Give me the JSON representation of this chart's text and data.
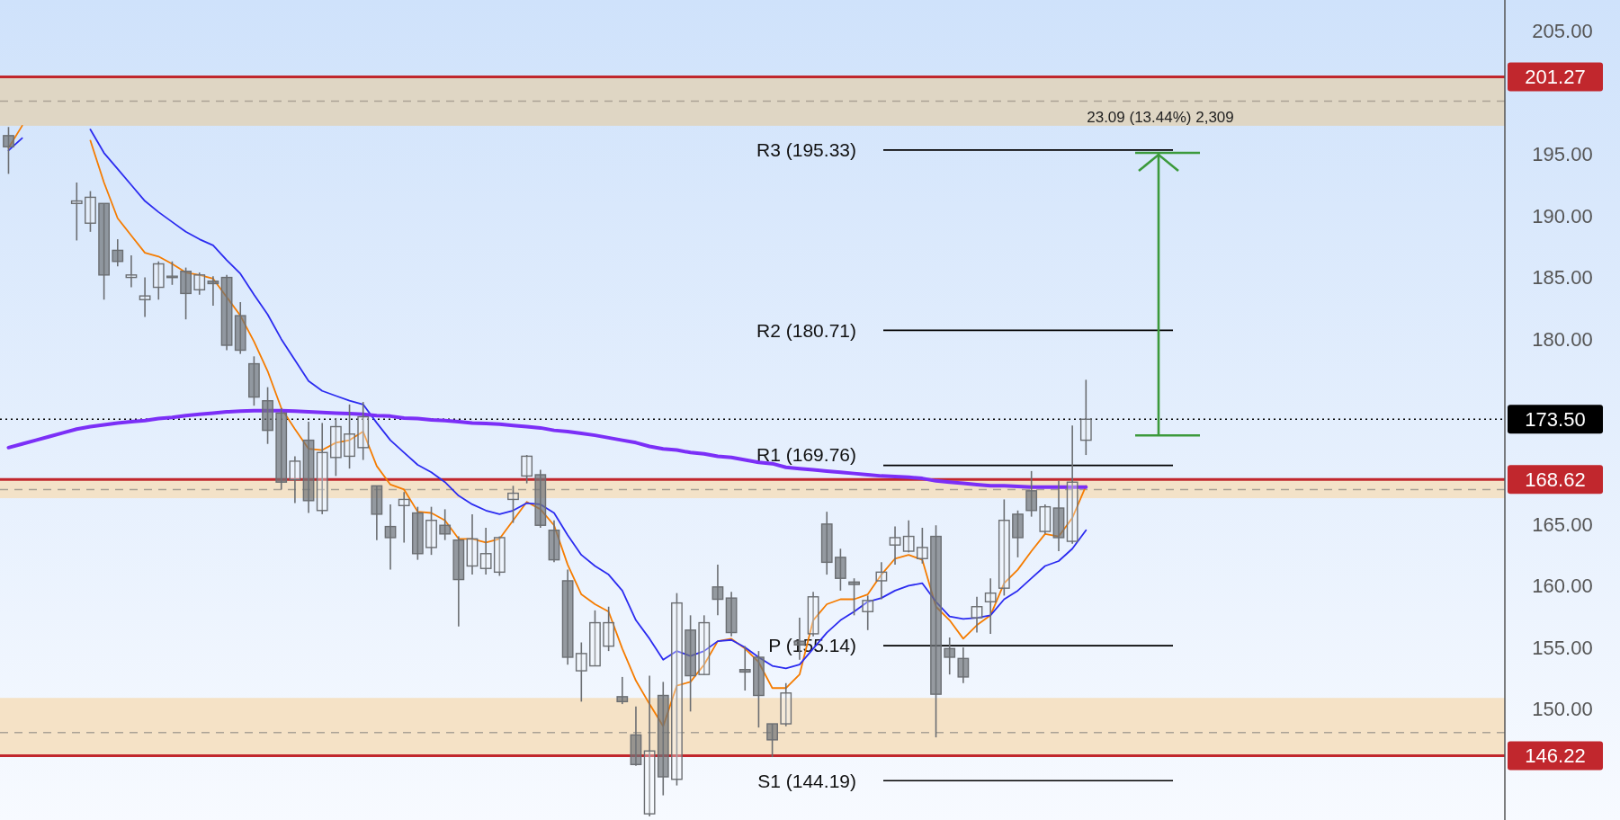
{
  "chart_data": {
    "type": "candlestick",
    "categories": [
      null,
      null,
      null,
      null,
      null,
      null,
      null,
      null,
      null,
      null,
      null,
      null,
      null,
      null,
      null,
      null,
      null,
      null,
      null,
      null,
      null,
      null,
      null,
      null,
      null,
      null,
      null,
      null,
      null,
      null,
      null,
      null,
      null,
      null,
      null,
      null,
      null,
      null,
      null,
      null,
      null,
      null,
      null,
      null,
      null,
      null,
      null,
      null,
      null,
      null,
      null,
      null,
      null,
      null,
      null,
      null,
      null,
      null,
      null,
      null,
      null,
      null,
      null,
      null,
      null,
      null,
      null,
      null,
      null,
      null,
      null,
      null,
      null,
      null,
      null,
      null,
      null,
      null,
      null,
      null
    ],
    "ohlc": [
      [
        196.5,
        197.2,
        193.4,
        195.6
      ],
      null,
      null,
      null,
      null,
      [
        191.0,
        192.7,
        188.0,
        191.2
      ],
      [
        189.4,
        192.0,
        188.7,
        191.5
      ],
      [
        191.0,
        191.0,
        183.2,
        185.2
      ],
      [
        187.2,
        188.1,
        185.9,
        186.3
      ],
      [
        185.0,
        186.8,
        184.2,
        185.2
      ],
      [
        183.2,
        185.0,
        181.8,
        183.5
      ],
      [
        184.2,
        186.3,
        183.2,
        186.1
      ],
      [
        185.0,
        186.3,
        184.4,
        185.1
      ],
      [
        185.5,
        185.8,
        181.6,
        183.7
      ],
      [
        184.0,
        185.4,
        183.6,
        185.2
      ],
      [
        184.7,
        185.1,
        182.7,
        184.5
      ],
      [
        185.0,
        185.2,
        179.1,
        179.5
      ],
      [
        181.9,
        183.0,
        178.8,
        179.1
      ],
      [
        178.0,
        178.6,
        174.6,
        175.3
      ],
      [
        175.0,
        176.1,
        171.5,
        172.6
      ],
      [
        174.0,
        174.4,
        167.8,
        168.4
      ],
      [
        168.6,
        170.5,
        166.7,
        170.1
      ],
      [
        171.8,
        173.3,
        165.9,
        166.9
      ],
      [
        166.1,
        173.2,
        165.8,
        170.8
      ],
      [
        170.4,
        173.6,
        168.9,
        172.9
      ],
      [
        170.5,
        174.7,
        169.5,
        172.3
      ],
      [
        171.2,
        174.9,
        170.2,
        173.7
      ],
      [
        168.1,
        168.1,
        163.7,
        165.8
      ],
      [
        164.8,
        166.6,
        161.3,
        163.9
      ],
      [
        166.5,
        167.6,
        163.5,
        167.0
      ],
      [
        165.9,
        166.4,
        162.1,
        162.6
      ],
      [
        163.1,
        166.4,
        162.5,
        165.3
      ],
      [
        164.9,
        166.2,
        163.7,
        164.2
      ],
      [
        163.7,
        164.0,
        156.7,
        160.5
      ],
      [
        161.6,
        165.8,
        160.9,
        163.8
      ],
      [
        161.4,
        164.7,
        160.9,
        162.6
      ],
      [
        161.1,
        164.0,
        160.8,
        163.9
      ],
      [
        167.0,
        168.1,
        165.1,
        167.5
      ],
      [
        168.9,
        170.6,
        168.3,
        170.5
      ],
      [
        169.0,
        169.4,
        164.7,
        164.9
      ],
      [
        164.5,
        165.3,
        161.9,
        162.1
      ],
      [
        160.4,
        161.3,
        153.6,
        154.2
      ],
      [
        153.1,
        155.4,
        150.6,
        154.5
      ],
      [
        153.5,
        158.0,
        153.5,
        157.0
      ],
      [
        155.1,
        158.3,
        154.7,
        157.0
      ],
      [
        151.0,
        152.6,
        150.4,
        150.6
      ],
      [
        147.9,
        150.2,
        145.4,
        145.5
      ],
      [
        141.5,
        152.7,
        141.3,
        146.6
      ],
      [
        151.1,
        152.2,
        143.0,
        144.5
      ],
      [
        144.3,
        159.4,
        143.8,
        158.6
      ],
      [
        156.4,
        157.6,
        149.8,
        152.7
      ],
      [
        152.8,
        157.6,
        152.8,
        157.0
      ],
      [
        159.9,
        161.7,
        157.6,
        158.9
      ],
      [
        159.0,
        159.5,
        155.9,
        156.2
      ],
      [
        153.2,
        155.1,
        151.5,
        153.0
      ],
      [
        154.2,
        154.7,
        148.5,
        151.1
      ],
      [
        148.8,
        148.8,
        146.1,
        147.5
      ],
      [
        148.8,
        152.1,
        148.6,
        151.3
      ],
      [
        155.5,
        157.4,
        154.0,
        155.2
      ],
      [
        156.1,
        159.5,
        155.9,
        159.1
      ],
      [
        165.0,
        166.0,
        160.9,
        161.9
      ],
      [
        162.3,
        163.0,
        159.6,
        160.6
      ],
      [
        160.3,
        160.6,
        157.6,
        160.1
      ],
      [
        157.9,
        159.2,
        156.4,
        158.8
      ],
      [
        160.4,
        161.9,
        158.9,
        161.1
      ],
      [
        163.3,
        164.8,
        161.7,
        163.9
      ],
      [
        162.8,
        165.3,
        162.7,
        164.0
      ],
      [
        162.2,
        164.7,
        161.8,
        163.1
      ],
      [
        164.0,
        164.9,
        147.7,
        151.2
      ],
      [
        154.9,
        155.8,
        152.8,
        154.2
      ],
      [
        154.1,
        155.0,
        152.1,
        152.6
      ],
      [
        157.4,
        159.1,
        156.2,
        158.3
      ],
      [
        158.7,
        160.6,
        156.1,
        159.4
      ],
      [
        159.8,
        167.0,
        159.2,
        165.3
      ],
      [
        165.8,
        166.1,
        162.3,
        163.9
      ],
      [
        167.7,
        169.3,
        165.6,
        166.1
      ],
      [
        164.4,
        166.6,
        164.2,
        166.4
      ],
      [
        166.3,
        168.5,
        162.8,
        163.9
      ],
      [
        163.6,
        173.0,
        163.4,
        168.4
      ],
      [
        171.8,
        176.7,
        170.6,
        173.5
      ]
    ],
    "series": [
      {
        "type": "line",
        "color": "#f57c00",
        "values": [
          195.5,
          197.3,
          null,
          null,
          null,
          null,
          196.1,
          192.7,
          189.8,
          188.4,
          187.0,
          186.7,
          186.1,
          185.4,
          185.2,
          184.9,
          183.4,
          181.9,
          179.8,
          177.4,
          174.4,
          172.7,
          171.1,
          171.0,
          171.6,
          171.8,
          172.5,
          169.7,
          168.2,
          167.8,
          166.0,
          165.9,
          165.3,
          163.8,
          163.8,
          163.5,
          163.8,
          165.3,
          166.8,
          166.2,
          164.9,
          161.7,
          159.3,
          158.5,
          157.9,
          154.9,
          152.3,
          150.4,
          148.6,
          151.9,
          152.2,
          153.6,
          155.5,
          155.7,
          154.9,
          153.8,
          151.7,
          151.7,
          152.8,
          157.2,
          158.5,
          158.9,
          158.9,
          159.3,
          160.9,
          162.2,
          162.5,
          162.1,
          158.3,
          157.2,
          155.7,
          156.8,
          157.6,
          160.2,
          161.3,
          162.8,
          164.2,
          164.0,
          165.5,
          168.1
        ]
      },
      {
        "type": "line",
        "color": "#2b2bf0",
        "values": [
          195.3,
          196.3,
          null,
          null,
          null,
          null,
          197.0,
          195.1,
          193.8,
          192.5,
          191.2,
          190.3,
          189.5,
          188.7,
          188.1,
          187.6,
          186.4,
          185.3,
          183.6,
          182.0,
          180.0,
          178.3,
          176.6,
          175.8,
          175.4,
          175.0,
          174.7,
          173.2,
          171.8,
          170.8,
          169.8,
          169.2,
          168.4,
          167.3,
          166.6,
          166.1,
          165.8,
          166.1,
          166.7,
          166.6,
          165.9,
          164.1,
          162.5,
          161.6,
          160.9,
          159.6,
          157.2,
          155.7,
          154.0,
          154.7,
          154.3,
          154.7,
          155.5,
          155.6,
          155.0,
          154.2,
          153.5,
          153.3,
          153.6,
          154.9,
          156.2,
          157.2,
          157.9,
          158.7,
          159.0,
          159.6,
          160.0,
          160.2,
          158.7,
          157.5,
          157.3,
          157.4,
          157.6,
          158.9,
          159.6,
          160.6,
          161.6,
          162.0,
          163.0,
          164.5
        ]
      },
      {
        "type": "line",
        "color": "#7b2ff7",
        "values": [
          171.2,
          171.5,
          171.8,
          172.1,
          172.4,
          172.7,
          172.9,
          173.05,
          173.2,
          173.3,
          173.4,
          173.55,
          173.65,
          173.8,
          173.9,
          174.0,
          174.1,
          174.15,
          174.2,
          174.2,
          174.2,
          174.15,
          174.1,
          174.05,
          174.0,
          173.95,
          173.9,
          173.8,
          173.75,
          173.6,
          173.55,
          173.45,
          173.4,
          173.3,
          173.2,
          173.15,
          173.1,
          173.0,
          172.9,
          172.8,
          172.6,
          172.5,
          172.35,
          172.2,
          172.0,
          171.8,
          171.6,
          171.3,
          171.1,
          171.0,
          170.8,
          170.7,
          170.5,
          170.4,
          170.2,
          170.0,
          169.9,
          169.6,
          169.5,
          169.4,
          169.3,
          169.2,
          169.1,
          169.0,
          168.9,
          168.85,
          168.8,
          168.7,
          168.5,
          168.4,
          168.3,
          168.2,
          168.1,
          168.1,
          168.05,
          168.0,
          168.0,
          168.0,
          168.0,
          168.0
        ]
      }
    ],
    "ylim": [
      141,
      207.5
    ],
    "yticks": [
      {
        "value": 150,
        "label": "150.00"
      },
      {
        "value": 155,
        "label": "155.00"
      },
      {
        "value": 160,
        "label": "160.00"
      },
      {
        "value": 165,
        "label": "165.00"
      },
      {
        "value": 180,
        "label": "180.00"
      },
      {
        "value": 185,
        "label": "185.00"
      },
      {
        "value": 190,
        "label": "190.00"
      },
      {
        "value": 195,
        "label": "195.00"
      },
      {
        "value": 205,
        "label": "205.00"
      }
    ],
    "tick_labels": "y",
    "bands": [
      {
        "axis": "y",
        "from": 197.3,
        "to": 201.27,
        "color": "#dfd6c4"
      },
      {
        "axis": "y",
        "from": 167.1,
        "to": 168.62,
        "color": "#f3e2c8"
      },
      {
        "axis": "y",
        "from": 146.22,
        "to": 150.9,
        "color": "#f5e2c6"
      }
    ],
    "ref_lines": [
      {
        "axis": "y",
        "value": 199.3,
        "color": "#aaa295",
        "line_style": "dashed"
      },
      {
        "axis": "y",
        "value": 167.8,
        "color": "#aaa295",
        "line_style": "dashed"
      },
      {
        "axis": "y",
        "value": 148.1,
        "color": "#aaa295",
        "line_style": "dashed"
      },
      {
        "axis": "y",
        "value": 201.27,
        "label": "201.27",
        "color": "#c1272d"
      },
      {
        "axis": "y",
        "value": 168.62,
        "label": "168.62",
        "color": "#c1272d"
      },
      {
        "axis": "y",
        "value": 146.22,
        "label": "146.22",
        "color": "#c1272d"
      },
      {
        "axis": "y",
        "value": 173.5,
        "label": "173.50",
        "color": "#000000",
        "line_style": "dotted"
      },
      {
        "axis": "y",
        "value": 195.33,
        "label": "R3 (195.33)",
        "color": "#000000"
      },
      {
        "axis": "y",
        "value": 180.71,
        "label": "R2 (180.71)",
        "color": "#000000"
      },
      {
        "axis": "y",
        "value": 169.76,
        "label": "R1 (169.76)",
        "color": "#000000"
      },
      {
        "axis": "y",
        "value": 155.14,
        "label": "P (155.14)",
        "color": "#000000"
      },
      {
        "axis": "y",
        "value": 144.19,
        "label": "S1 (144.19)",
        "color": "#000000"
      }
    ],
    "annotations": [
      {
        "text": "23.09 (13.44%) 2,309",
        "y": 195.1
      }
    ]
  }
}
